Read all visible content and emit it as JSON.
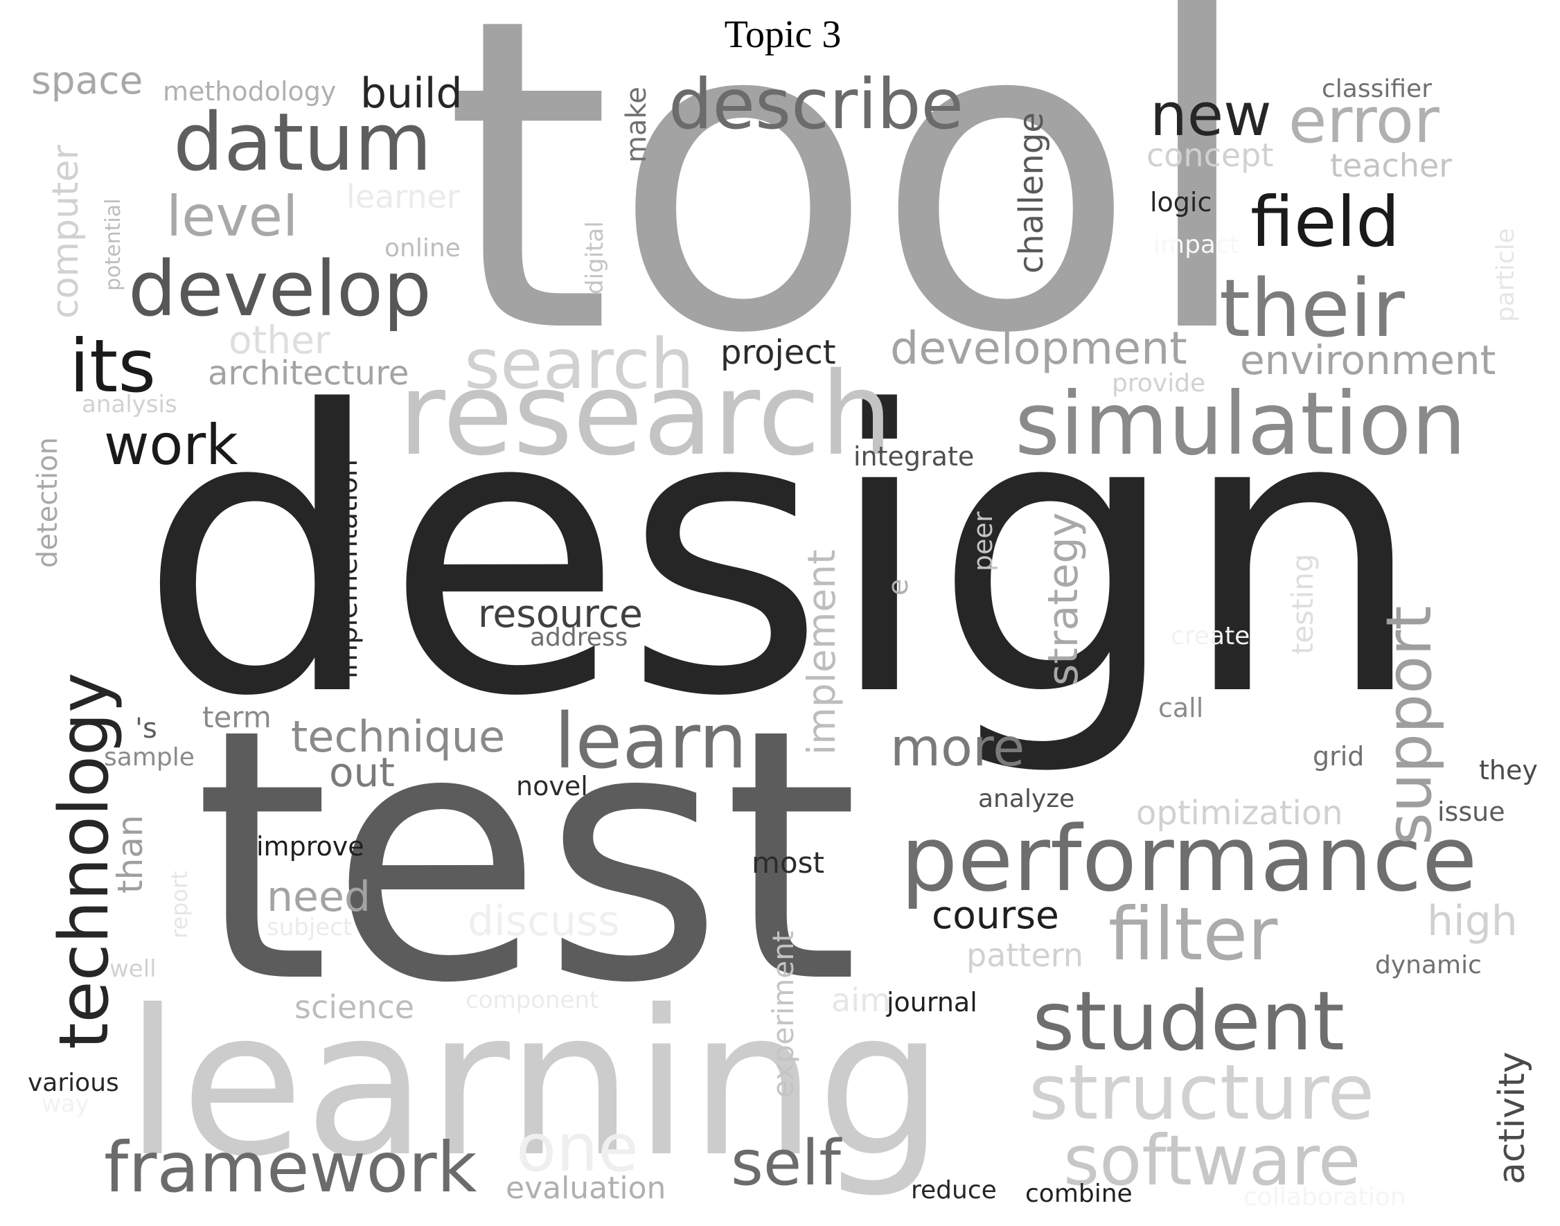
{
  "title": "Topic 3",
  "words": [
    {
      "text": "tool",
      "color": "#a3a3a3"
    },
    {
      "text": "design",
      "color": "#262626"
    },
    {
      "text": "test",
      "color": "#5c5c5c"
    },
    {
      "text": "learning",
      "color": "#cccccc"
    },
    {
      "text": "research",
      "color": "#c4c4c4"
    },
    {
      "text": "simulation",
      "color": "#8a8a8a"
    },
    {
      "text": "performance",
      "color": "#6e6e6e"
    },
    {
      "text": "develop",
      "color": "#575757"
    },
    {
      "text": "datum",
      "color": "#5e5e5e"
    },
    {
      "text": "describe",
      "color": "#6b6b6b"
    },
    {
      "text": "their",
      "color": "#7c7c7c"
    },
    {
      "text": "learn",
      "color": "#707070"
    },
    {
      "text": "student",
      "color": "#6e6e6e"
    },
    {
      "text": "filter",
      "color": "#ababab"
    },
    {
      "text": "framework",
      "color": "#6b6b6b"
    },
    {
      "text": "technology",
      "color": "#262626"
    },
    {
      "text": "search",
      "color": "#d1d1d1"
    },
    {
      "text": "structure",
      "color": "#d1d1d1"
    },
    {
      "text": "software",
      "color": "#c7c7c7"
    },
    {
      "text": "field",
      "color": "#1a1a1a"
    },
    {
      "text": "its",
      "color": "#1a1a1a"
    },
    {
      "text": "error",
      "color": "#b0b0b0"
    },
    {
      "text": "new",
      "color": "#262626"
    },
    {
      "text": "level",
      "color": "#a8a8a8"
    },
    {
      "text": "support",
      "color": "#9e9e9e"
    },
    {
      "text": "self",
      "color": "#6b6b6b"
    },
    {
      "text": "work",
      "color": "#1a1a1a"
    },
    {
      "text": "more",
      "color": "#7a7a7a"
    },
    {
      "text": "development",
      "color": "#a3a3a3"
    },
    {
      "text": "environment",
      "color": "#a3a3a3"
    },
    {
      "text": "technique",
      "color": "#8a8a8a"
    },
    {
      "text": "one",
      "color": "#efefef"
    },
    {
      "text": "strategy",
      "color": "#a8a8a8"
    },
    {
      "text": "implement",
      "color": "#bdbdbd"
    },
    {
      "text": "resource",
      "color": "#404040"
    },
    {
      "text": "activity",
      "color": "#4a4a4a"
    },
    {
      "text": "build",
      "color": "#262626"
    },
    {
      "text": "space",
      "color": "#a8a8a8"
    },
    {
      "text": "other",
      "color": "#dedede"
    },
    {
      "text": "architecture",
      "color": "#a3a3a3"
    },
    {
      "text": "computer",
      "color": "#d1d1d1"
    },
    {
      "text": "challenge",
      "color": "#595959"
    },
    {
      "text": "discuss",
      "color": "#efefef"
    },
    {
      "text": "course",
      "color": "#1f1f1f"
    },
    {
      "text": "need",
      "color": "#a3a3a3"
    },
    {
      "text": "out",
      "color": "#7a7a7a"
    },
    {
      "text": "high",
      "color": "#d1d1d1"
    },
    {
      "text": "optimization",
      "color": "#d1d1d1"
    },
    {
      "text": "project",
      "color": "#2b2b2b"
    },
    {
      "text": "experiment",
      "color": "#c4c4c4"
    },
    {
      "text": "technology-than",
      "label": "than",
      "color": "#9e9e9e"
    },
    {
      "text": "detection",
      "color": "#a8a8a8"
    },
    {
      "text": "implementation",
      "color": "#262626"
    },
    {
      "text": "concept",
      "color": "#d1d1d1"
    },
    {
      "text": "teacher",
      "color": "#c4c4c4"
    },
    {
      "text": "testing",
      "color": "#dedede"
    },
    {
      "text": "pattern",
      "color": "#d1d1d1"
    },
    {
      "text": "science",
      "color": "#bdbdbd"
    },
    {
      "text": "make",
      "color": "#707070"
    },
    {
      "text": "peer",
      "color": "#c4c4c4"
    },
    {
      "text": "particle",
      "color": "#e6e6e6"
    },
    {
      "text": "methodology",
      "color": "#b0b0b0"
    },
    {
      "text": "classifier",
      "color": "#707070"
    },
    {
      "text": "most",
      "color": "#2b2b2b"
    },
    {
      "text": "learner",
      "color": "#ebebeb"
    },
    {
      "text": "online",
      "color": "#bdbdbd"
    },
    {
      "text": "digital",
      "color": "#c4c4c4"
    },
    {
      "text": "potential",
      "color": "#bdbdbd"
    },
    {
      "text": "logic",
      "color": "#262626"
    },
    {
      "text": "integrate",
      "color": "#4f4f4f"
    },
    {
      "text": "term",
      "color": "#8a8a8a"
    },
    {
      "text": "novel",
      "color": "#2b2b2b"
    },
    {
      "text": "improve",
      "color": "#1f1f1f"
    },
    {
      "text": "analyze",
      "color": "#4f4f4f"
    },
    {
      "text": "aim",
      "color": "#e6e6e6"
    },
    {
      "text": "journal",
      "color": "#1f1f1f"
    },
    {
      "text": "provide",
      "color": "#d1d1d1"
    },
    {
      "text": "address",
      "color": "#6e6e6e"
    },
    {
      "text": "evaluation",
      "color": "#b0b0b0"
    },
    {
      "text": "grid",
      "color": "#707070"
    },
    {
      "text": "they",
      "color": "#4a4a4a"
    },
    {
      "text": "issue",
      "color": "#5c5c5c"
    },
    {
      "text": "dynamic",
      "color": "#707070"
    },
    {
      "text": "call",
      "color": "#8a8a8a"
    },
    {
      "text": "analysis",
      "color": "#d1d1d1"
    },
    {
      "text": "sample",
      "color": "#8a8a8a"
    },
    {
      "text": "'s",
      "color": "#5c5c5c"
    },
    {
      "text": "report",
      "color": "#e6e6e6"
    },
    {
      "text": "subject",
      "color": "#ebebeb"
    },
    {
      "text": "well",
      "color": "#d1d1d1"
    },
    {
      "text": "component",
      "color": "#ebebeb"
    },
    {
      "text": "various",
      "color": "#262626"
    },
    {
      "text": "way",
      "color": "#f2f2f2"
    },
    {
      "text": "e",
      "color": "#b0b0b0"
    },
    {
      "text": "create",
      "color": "#f2f2f2"
    },
    {
      "text": "impact",
      "color": "#f7f7f7"
    },
    {
      "text": "reduce",
      "color": "#262626"
    },
    {
      "text": "combine",
      "color": "#1f1f1f"
    },
    {
      "text": "collaboration",
      "color": "#f5f5f5"
    }
  ]
}
